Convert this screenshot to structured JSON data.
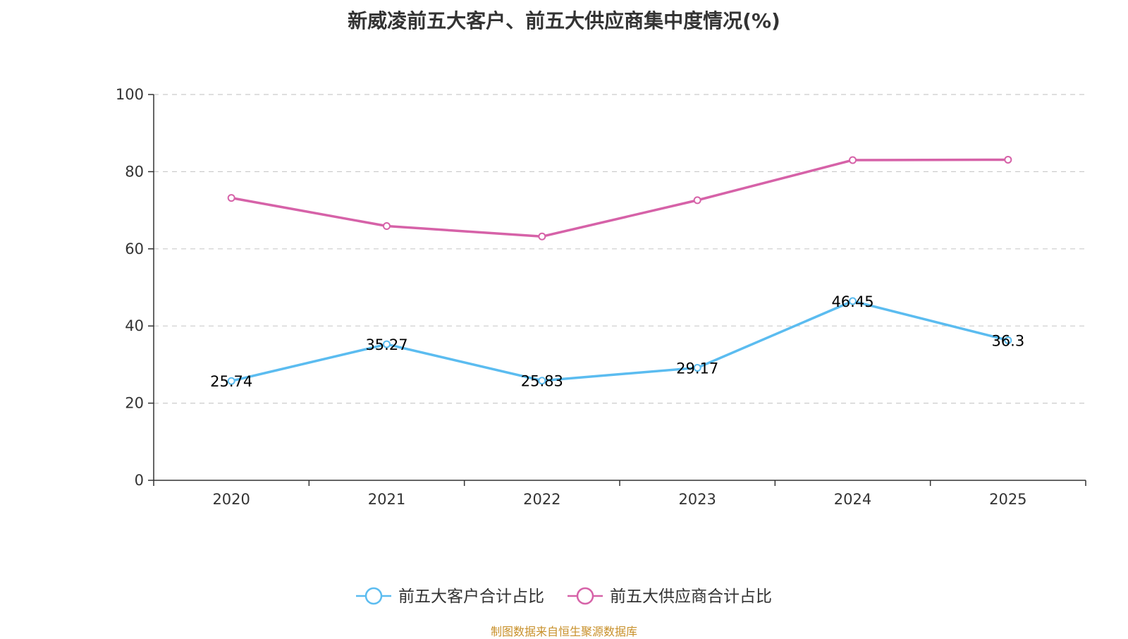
{
  "chart_data": {
    "type": "line",
    "title": "新威凌前五大客户、前五大供应商集中度情况(%)",
    "categories": [
      "2020",
      "2021",
      "2022",
      "2023",
      "2024",
      "2025"
    ],
    "ylim": [
      0,
      100
    ],
    "yticks": [
      0,
      20,
      40,
      60,
      80,
      100
    ],
    "grid": true,
    "legend_position": "bottom-center",
    "series": [
      {
        "name": "前五大客户合计占比",
        "color": "#5bbcf0",
        "values": [
          25.74,
          35.27,
          25.83,
          29.17,
          46.45,
          36.3
        ],
        "labels": [
          "25.74",
          "35.27",
          "25.83",
          "29.17",
          "46.45",
          "36.3"
        ]
      },
      {
        "name": "前五大供应商合计占比",
        "color": "#d662a8",
        "values": [
          73.2,
          65.9,
          63.2,
          72.6,
          83.0,
          83.1
        ]
      }
    ]
  },
  "source_note": "制图数据来自恒生聚源数据库"
}
